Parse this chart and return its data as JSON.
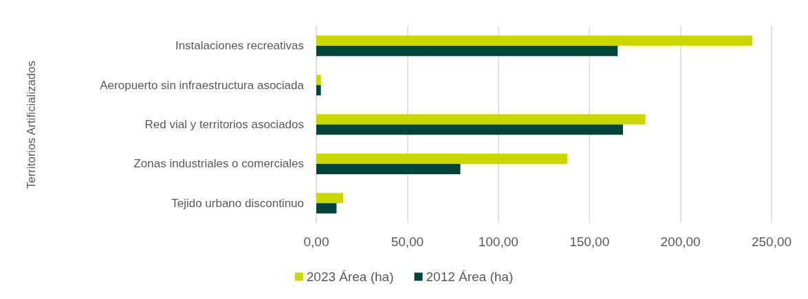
{
  "chart_data": {
    "type": "bar",
    "orientation": "horizontal",
    "annotations": [
      "Territorios Artificializados"
    ],
    "categories": [
      "Instalaciones recreativas",
      "Aeropuerto sin infraestructura asociada",
      "Red vial y territorios asociados",
      "Zonas industriales o comerciales",
      "Tejido urbano discontinuo"
    ],
    "series": [
      {
        "name": "2023 Área (ha)",
        "color": "#cbd500",
        "values": [
          239.5,
          2.5,
          180.7,
          137.8,
          14.7
        ]
      },
      {
        "name": "2012 Área (ha)",
        "color": "#00433a",
        "values": [
          165.5,
          2.5,
          168.4,
          79.1,
          11.1
        ]
      }
    ],
    "xlim": [
      0,
      250
    ],
    "xticks": [
      {
        "value": 0,
        "label": "0,00"
      },
      {
        "value": 50,
        "label": "50,00"
      },
      {
        "value": 100,
        "label": "100,00"
      },
      {
        "value": 150,
        "label": "150,00"
      },
      {
        "value": 200,
        "label": "200,00"
      },
      {
        "value": 250,
        "label": "250,00"
      }
    ],
    "grid": "x",
    "legend": "bottom"
  }
}
